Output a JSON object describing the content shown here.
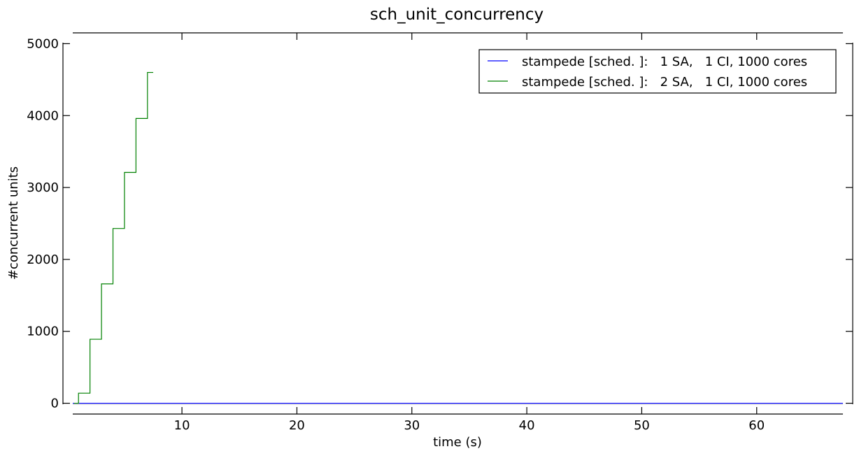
{
  "chart_data": {
    "type": "line",
    "title": "sch_unit_concurrency",
    "xlabel": "time (s)",
    "ylabel": "#concurrent units",
    "xlim": [
      0.5,
      67.5
    ],
    "ylim": [
      -150,
      5150
    ],
    "xticks": [
      10,
      20,
      30,
      40,
      50,
      60
    ],
    "yticks": [
      0,
      1000,
      2000,
      3000,
      4000,
      5000
    ],
    "grid": false,
    "legend_position": "top-right",
    "series": [
      {
        "name": "stampede [sched. ]:   1 SA,   1 CI, 1000 cores",
        "color": "#0000ff",
        "step": true,
        "x": [
          0.5,
          67.5
        ],
        "y": [
          0,
          0
        ]
      },
      {
        "name": "stampede [sched. ]:   2 SA,   1 CI, 1000 cores",
        "color": "#008000",
        "step": true,
        "x": [
          0.6,
          1.0,
          2.0,
          3.0,
          4.0,
          5.0,
          6.0,
          7.0,
          7.5
        ],
        "y": [
          0,
          140,
          890,
          1660,
          2430,
          3210,
          3960,
          4600,
          4600
        ]
      }
    ]
  }
}
